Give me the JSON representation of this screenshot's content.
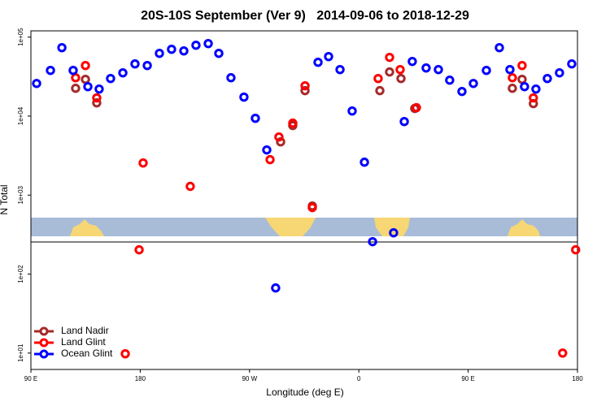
{
  "chart_data": {
    "type": "scatter",
    "title": "20S-10S September (Ver 9)   2014-09-06 to 2018-12-29",
    "xlabel": "Longitude (deg E)",
    "ylabel": "N Total",
    "log_y": true,
    "xlim": [
      90,
      540
    ],
    "ylim": [
      6.2,
      120000
    ],
    "xticks": [
      {
        "value": 90,
        "label": "90 E"
      },
      180,
      {
        "value": 270,
        "label": "90 W"
      },
      {
        "value": 360,
        "label": "0"
      },
      {
        "value": 450,
        "label": "90 E"
      },
      {
        "value": 540,
        "label": "180"
      }
    ],
    "yticks": [
      {
        "value": 10,
        "label": "1e+01"
      },
      {
        "value": 100,
        "label": "1e+02"
      },
      {
        "value": 1000,
        "label": "1e+03"
      },
      {
        "value": 10000,
        "label": "1e+04"
      },
      {
        "value": 100000,
        "label": "1e+05"
      }
    ],
    "legend": "bottom-left",
    "series": [
      {
        "name": "Land Nadir",
        "color": "#a52a2a",
        "x": [
          126.8,
          134.9,
          144.2,
          295.6,
          305.6,
          315.7,
          321.7,
          377.3,
          385.3,
          394.7,
          406.0,
          486.4,
          494.4,
          503.7
        ],
        "values": [
          22500,
          29200,
          14700,
          4720,
          7590,
          21000,
          728,
          21000,
          36200,
          29900,
          12500,
          22500,
          29200,
          14400
        ]
      },
      {
        "name": "Land Glint",
        "color": "#ff0000",
        "x": [
          126.8,
          134.9,
          144.2,
          167.7,
          179.1,
          182.4,
          221.2,
          286.9,
          294.2,
          305.6,
          315.7,
          321.7,
          375.9,
          385.3,
          394.0,
          407.4,
          486.4,
          494.4,
          503.7,
          527.8,
          538.5
        ],
        "values": [
          30600,
          43700,
          17000,
          9.8,
          203,
          2550,
          1290,
          2810,
          5440,
          8150,
          24200,
          695,
          29900,
          55400,
          38800,
          12800,
          30600,
          43700,
          17000,
          10.0,
          203
        ]
      },
      {
        "name": "Ocean Glint",
        "color": "#0000ff",
        "x": [
          94.7,
          106.1,
          115.5,
          124.8,
          136.9,
          146.2,
          155.6,
          165.7,
          175.7,
          185.8,
          195.8,
          205.8,
          215.9,
          225.9,
          236.0,
          244.7,
          254.7,
          265.4,
          274.8,
          284.2,
          291.5,
          326.4,
          335.1,
          344.5,
          354.5,
          364.6,
          371.3,
          388.6,
          397.4,
          404.0,
          415.4,
          425.5,
          434.8,
          444.9,
          454.3,
          465.0,
          475.7,
          484.4,
          496.4,
          505.8,
          515.2,
          525.2,
          535.3
        ],
        "values": [
          25900,
          37900,
          73500,
          37900,
          23600,
          22000,
          29900,
          35300,
          45800,
          43700,
          62300,
          70100,
          66900,
          78900,
          82800,
          62300,
          30600,
          17400,
          9380,
          3730,
          66.7,
          48000,
          56700,
          38800,
          11600,
          2610,
          257,
          333,
          8530,
          49200,
          40700,
          38800,
          28500,
          20500,
          25900,
          37900,
          73500,
          38800,
          23600,
          22000,
          29900,
          35300,
          45800
        ]
      }
    ]
  }
}
